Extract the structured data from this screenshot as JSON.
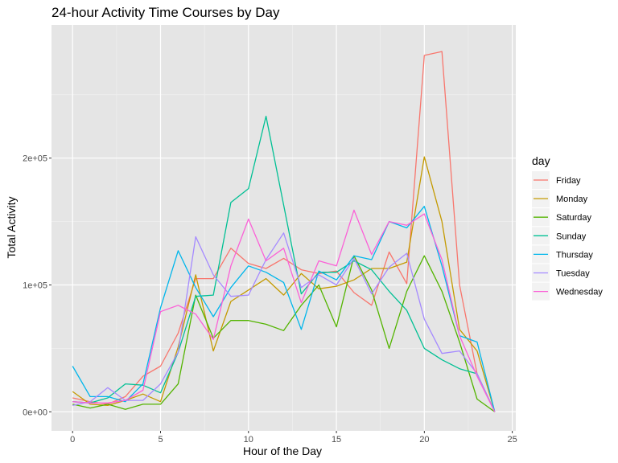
{
  "chart_data": {
    "type": "line",
    "title": "24-hour Activity Time Courses by Day",
    "xlabel": "Hour of the Day",
    "ylabel": "Total Activity",
    "xlim": [
      -1.2,
      25.2
    ],
    "ylim": [
      -15000,
      305000
    ],
    "x_ticks": [
      0,
      5,
      10,
      15,
      20,
      25
    ],
    "y_ticks": [
      0,
      100000,
      200000
    ],
    "y_tick_labels": [
      "0e+00",
      "1e+05",
      "2e+05"
    ],
    "x": [
      0,
      1,
      2,
      3,
      4,
      5,
      6,
      7,
      8,
      9,
      10,
      11,
      12,
      13,
      14,
      15,
      16,
      17,
      18,
      19,
      20,
      21,
      22,
      23,
      24
    ],
    "legend_title": "day",
    "legend_position": "right",
    "grid": true,
    "panel_background": "#e5e5e5",
    "series": [
      {
        "name": "Friday",
        "color": "#F8766D",
        "values": [
          11000,
          8000,
          6000,
          12000,
          28000,
          36000,
          62000,
          105000,
          105000,
          129000,
          117000,
          113000,
          121000,
          112000,
          109000,
          111000,
          94000,
          84000,
          126000,
          101000,
          281000,
          284000,
          100000,
          30000,
          0
        ]
      },
      {
        "name": "Monday",
        "color": "#C49A00",
        "values": [
          16000,
          6000,
          5000,
          9000,
          14000,
          8000,
          51000,
          108000,
          48000,
          87000,
          96000,
          105000,
          92000,
          109000,
          97000,
          99000,
          104000,
          113000,
          113000,
          118000,
          201000,
          150000,
          65000,
          48000,
          0
        ]
      },
      {
        "name": "Saturday",
        "color": "#53B400",
        "values": [
          6000,
          3000,
          6000,
          2000,
          6000,
          6000,
          22000,
          92000,
          58000,
          72000,
          72000,
          69000,
          64000,
          84000,
          100000,
          67000,
          123000,
          96000,
          50000,
          95000,
          123000,
          95000,
          55000,
          10000,
          0
        ]
      },
      {
        "name": "Sunday",
        "color": "#00C094",
        "values": [
          8000,
          7000,
          11000,
          22000,
          21000,
          15000,
          47000,
          91000,
          92000,
          165000,
          176000,
          233000,
          163000,
          93000,
          110000,
          110000,
          119000,
          112000,
          95000,
          80000,
          50000,
          41000,
          34000,
          30000,
          0
        ]
      },
      {
        "name": "Thursday",
        "color": "#00B6EB",
        "values": [
          36000,
          12000,
          12000,
          8000,
          22000,
          82000,
          127000,
          98000,
          75000,
          98000,
          115000,
          110000,
          102000,
          65000,
          111000,
          104000,
          123000,
          120000,
          150000,
          145000,
          162000,
          115000,
          60000,
          55000,
          0
        ]
      },
      {
        "name": "Tuesday",
        "color": "#A58AFF",
        "values": [
          5000,
          8000,
          19000,
          9000,
          9000,
          22000,
          47000,
          138000,
          108000,
          91000,
          92000,
          120000,
          141000,
          98000,
          108000,
          100000,
          121000,
          93000,
          114000,
          125000,
          73000,
          46000,
          48000,
          30000,
          0
        ]
      },
      {
        "name": "Wednesday",
        "color": "#FB61D7",
        "values": [
          8000,
          7000,
          7000,
          9000,
          17000,
          79000,
          84000,
          77000,
          57000,
          115000,
          152000,
          119000,
          129000,
          86000,
          119000,
          115000,
          159000,
          124000,
          150000,
          147000,
          156000,
          120000,
          60000,
          28000,
          0
        ]
      }
    ]
  }
}
